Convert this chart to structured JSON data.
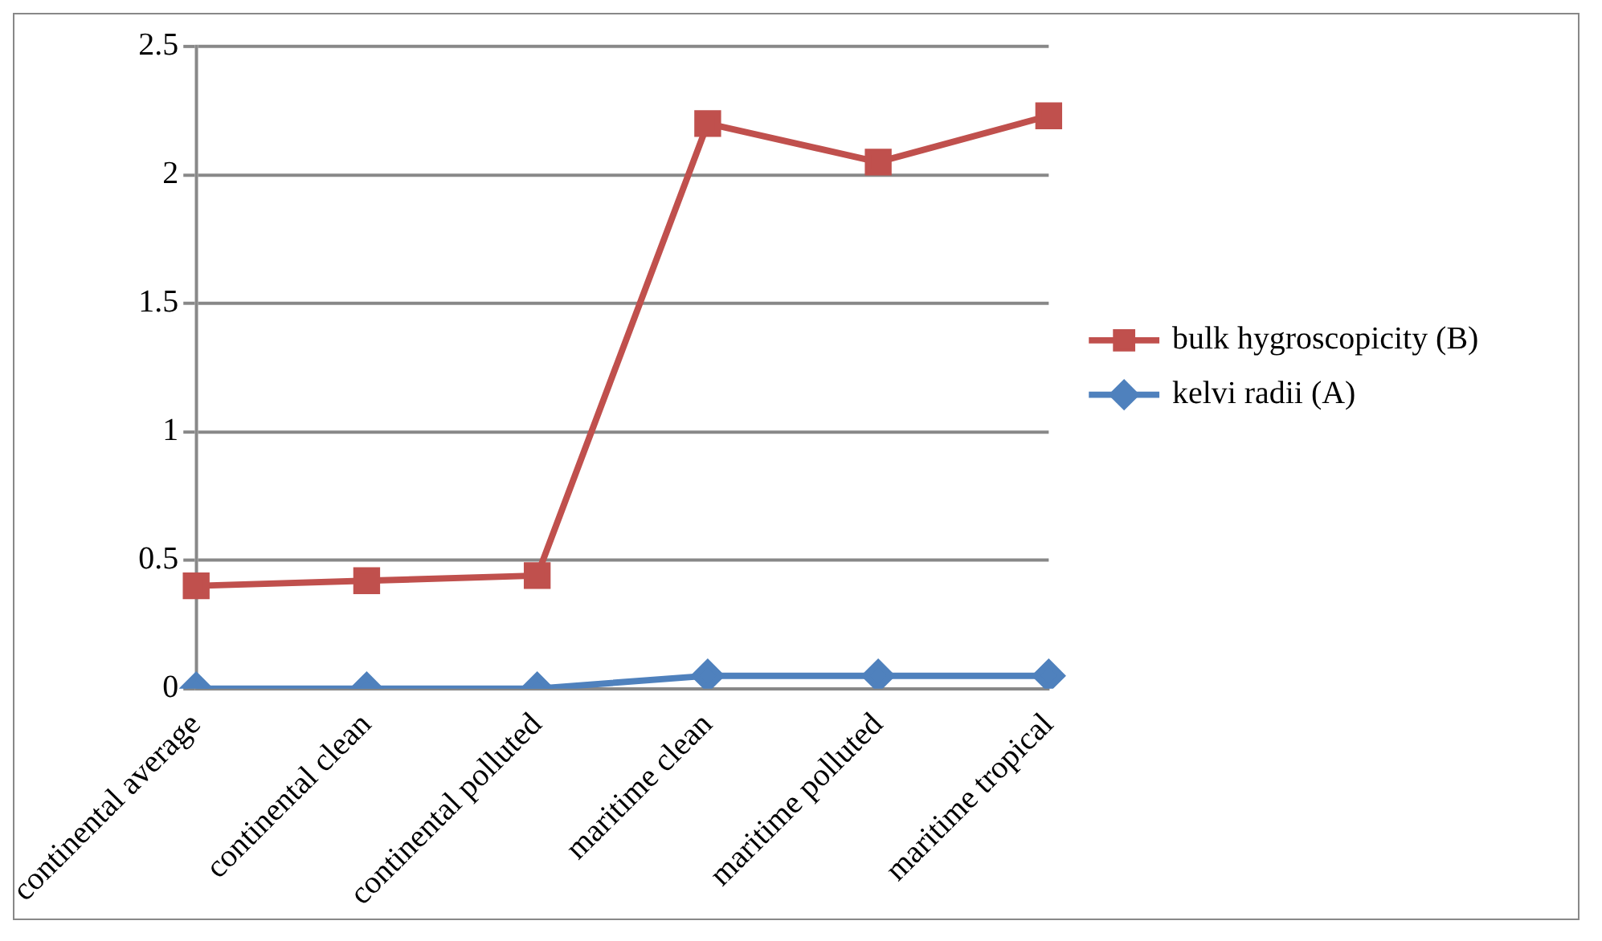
{
  "chart_data": {
    "type": "line",
    "categories": [
      "continental average",
      "continental clean",
      "continental polluted",
      "maritime clean",
      "maritime polluted",
      "maritime tropical"
    ],
    "series": [
      {
        "name": "bulk hygroscopicity (B)",
        "color": "#c0504d",
        "marker": "square",
        "values": [
          0.4,
          0.42,
          0.44,
          2.2,
          2.05,
          2.23
        ]
      },
      {
        "name": "kelvi radii (A)",
        "color": "#4f81bd",
        "marker": "diamond",
        "values": [
          0,
          0,
          0,
          0.05,
          0.05,
          0.05
        ]
      }
    ],
    "ylim": [
      0,
      2.5
    ],
    "yticks": [
      0,
      0.5,
      1,
      1.5,
      2,
      2.5
    ],
    "grid": "y",
    "legend": "right"
  }
}
